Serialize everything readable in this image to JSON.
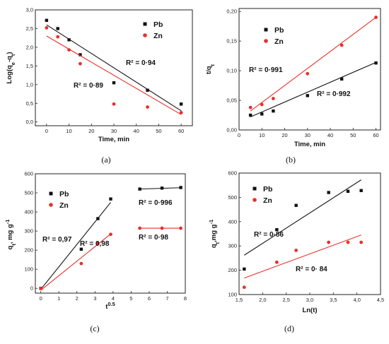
{
  "chart_data": [
    {
      "type": "scatter",
      "caption": "(a)",
      "xlabel": "Time, min",
      "ylabel": "Log(q_e-q_t)",
      "xlim": [
        -5,
        65
      ],
      "ylim": [
        -0.1,
        3.0
      ],
      "xticks": [
        "0",
        "10",
        "20",
        "30",
        "40",
        "50",
        "60"
      ],
      "yticks": [
        "0,0",
        "0,5",
        "1,0",
        "1,5",
        "2,0",
        "2,5",
        "3,0"
      ],
      "legend_position": "top-right",
      "series": [
        {
          "name": "Pb",
          "color": "#111111",
          "x": [
            0,
            5,
            10,
            15,
            30,
            45,
            60
          ],
          "y": [
            2.72,
            2.5,
            2.2,
            1.8,
            1.05,
            0.85,
            0.48
          ],
          "fit": {
            "x": [
              0,
              60
            ],
            "y": [
              2.6,
              0.3
            ]
          },
          "r2_label": "R² = 0·94"
        },
        {
          "name": "Zn",
          "color": "#e8302a",
          "x": [
            0,
            5,
            10,
            15,
            30,
            45,
            60
          ],
          "y": [
            2.52,
            2.28,
            1.93,
            1.56,
            0.48,
            0.4,
            0.25
          ],
          "fit": {
            "x": [
              0,
              60
            ],
            "y": [
              2.3,
              0.2
            ]
          },
          "r2_label": "R² = 0·89"
        }
      ]
    },
    {
      "type": "scatter",
      "caption": "(b)",
      "xlabel": "Time, min",
      "ylabel": "t/q_t",
      "xlim": [
        0,
        62
      ],
      "ylim": [
        0,
        0.205
      ],
      "xticks": [
        "0",
        "10",
        "20",
        "30",
        "40",
        "50",
        "60"
      ],
      "yticks": [
        "0,00",
        "0,05",
        "0,10",
        "0,15",
        "0,20"
      ],
      "legend_position": "top-left",
      "series": [
        {
          "name": "Pb",
          "color": "#111111",
          "x": [
            5,
            10,
            15,
            30,
            45,
            60
          ],
          "y": [
            0.025,
            0.027,
            0.032,
            0.058,
            0.086,
            0.113
          ],
          "fit": {
            "x": [
              5,
              60
            ],
            "y": [
              0.022,
              0.114
            ]
          },
          "r2_label": "R² = 0·992"
        },
        {
          "name": "Zn",
          "color": "#e8302a",
          "x": [
            5,
            10,
            15,
            30,
            45,
            60
          ],
          "y": [
            0.038,
            0.043,
            0.053,
            0.095,
            0.143,
            0.19
          ],
          "fit": {
            "x": [
              5,
              60
            ],
            "y": [
              0.032,
              0.19
            ]
          },
          "r2_label": "R² = 0·991"
        }
      ]
    },
    {
      "type": "scatter",
      "caption": "(c)",
      "xlabel": "t^0.5",
      "ylabel": "q_t, mg g^-1",
      "xlim": [
        -0.3,
        8.0
      ],
      "ylim": [
        -25,
        600
      ],
      "xticks": [
        "0",
        "1",
        "2",
        "3",
        "4",
        "5",
        "6",
        "7",
        "8"
      ],
      "yticks": [
        "0",
        "100",
        "200",
        "300",
        "400",
        "500",
        "600"
      ],
      "legend_position": "top-left",
      "series": [
        {
          "name": "Pb",
          "color": "#111111",
          "x": [
            0,
            2.24,
            3.16,
            3.87,
            5.48,
            6.71,
            7.75
          ],
          "y": [
            0,
            205,
            365,
            468,
            520,
            525,
            528
          ],
          "fit_segments": [
            {
              "x": [
                0,
                3.87
              ],
              "y": [
                -5,
                450
              ]
            },
            {
              "x": [
                5.48,
                7.75
              ],
              "y": [
                520,
                527
              ]
            }
          ],
          "r2_labels": [
            "R² = 0,97",
            "R² = 0·996"
          ]
        },
        {
          "name": "Zn",
          "color": "#e8302a",
          "x": [
            0,
            2.24,
            3.16,
            3.87,
            5.48,
            6.71,
            7.75
          ],
          "y": [
            0,
            130,
            235,
            283,
            315,
            315,
            315
          ],
          "fit_segments": [
            {
              "x": [
                0,
                3.87
              ],
              "y": [
                -10,
                285
              ]
            },
            {
              "x": [
                5.48,
                7.75
              ],
              "y": [
                315,
                315
              ]
            }
          ],
          "r2_labels": [
            "R² = 0,98",
            "R² = 0·98"
          ]
        }
      ]
    },
    {
      "type": "scatter",
      "caption": "(d)",
      "xlabel": "Ln(t)",
      "ylabel": "q_t,mg g^-1",
      "xlim": [
        1.5,
        4.5
      ],
      "ylim": [
        100,
        600
      ],
      "xticks": [
        "1,5",
        "2,0",
        "2,5",
        "3,0",
        "3,5",
        "4,0",
        "4,5"
      ],
      "yticks": [
        "100",
        "200",
        "300",
        "400",
        "500",
        "600"
      ],
      "legend_position": "top-left",
      "series": [
        {
          "name": "Pb",
          "color": "#111111",
          "x": [
            1.61,
            2.3,
            2.71,
            3.4,
            3.81,
            4.09
          ],
          "y": [
            205,
            367,
            467,
            520,
            525,
            528
          ],
          "fit": {
            "x": [
              1.61,
              4.09
            ],
            "y": [
              262,
              572
            ]
          },
          "r2_label": "R² = 0·86"
        },
        {
          "name": "Zn",
          "color": "#e8302a",
          "x": [
            1.61,
            2.3,
            2.71,
            3.4,
            3.81,
            4.09
          ],
          "y": [
            130,
            233,
            282,
            315,
            315,
            315
          ],
          "fit": {
            "x": [
              1.61,
              4.09
            ],
            "y": [
              168,
              345
            ]
          },
          "r2_label": "R² = 0· 84"
        }
      ]
    }
  ]
}
